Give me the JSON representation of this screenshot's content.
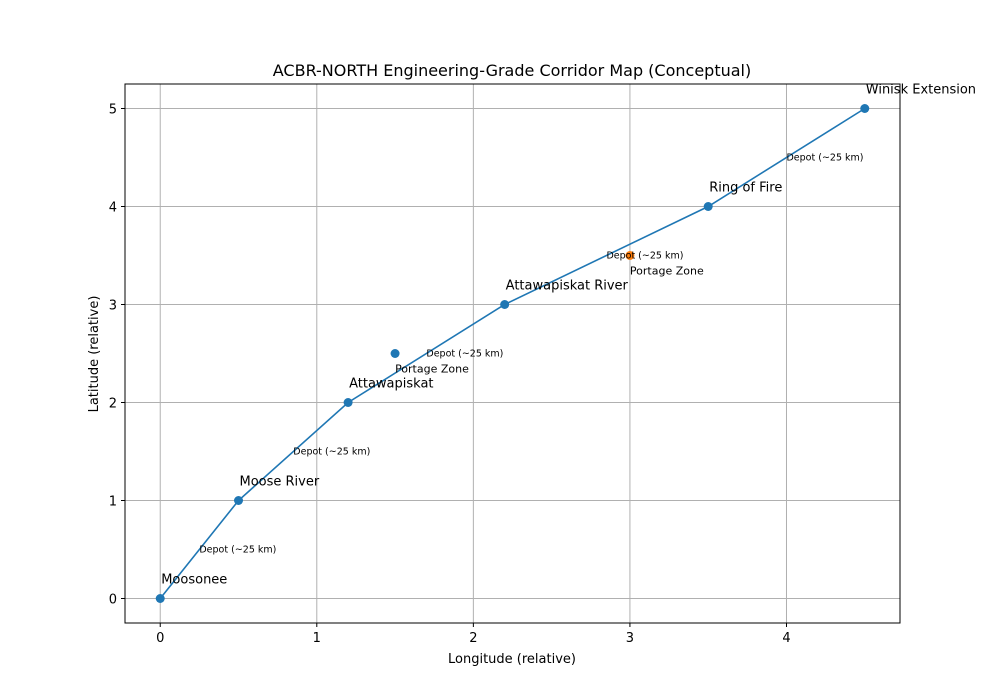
{
  "chart_data": {
    "type": "line",
    "title": "ACBR-NORTH Engineering-Grade Corridor Map (Conceptual)",
    "xlabel": "Longitude (relative)",
    "ylabel": "Latitude (relative)",
    "xlim": [
      -0.225,
      4.725
    ],
    "ylim": [
      -0.25,
      5.25
    ],
    "xticks": [
      0,
      1,
      2,
      3,
      4
    ],
    "yticks": [
      0,
      1,
      2,
      3,
      4,
      5
    ],
    "grid": true,
    "series": [
      {
        "color": "#1f77b4",
        "points": [
          {
            "x": 0,
            "y": 0,
            "label": "Moosonee"
          },
          {
            "x": 0.5,
            "y": 1,
            "label": "Moose River"
          },
          {
            "x": 1.2,
            "y": 2,
            "label": "Attawapiskat"
          },
          {
            "x": 2.2,
            "y": 3,
            "label": "Attawapiskat River"
          },
          {
            "x": 3.5,
            "y": 4,
            "label": "Ring of Fire"
          },
          {
            "x": 4.5,
            "y": 5,
            "label": "Winisk Extension"
          }
        ]
      }
    ],
    "depots": [
      {
        "x": 0.25,
        "y": 0.5,
        "label": "Depot (~25 km)"
      },
      {
        "x": 0.85,
        "y": 1.5,
        "label": "Depot (~25 km)"
      },
      {
        "x": 1.7,
        "y": 2.5,
        "label": "Depot (~25 km)"
      },
      {
        "x": 2.85,
        "y": 3.5,
        "label": "Depot (~25 km)"
      },
      {
        "x": 4.0,
        "y": 4.5,
        "label": "Depot (~25 km)"
      }
    ],
    "portage_zones": [
      {
        "x": 1.5,
        "y": 2.5,
        "label": "Portage Zone",
        "color": "#1f77b4"
      },
      {
        "x": 3.0,
        "y": 3.5,
        "label": "Portage Zone",
        "color": "#ff7f0e"
      }
    ]
  }
}
